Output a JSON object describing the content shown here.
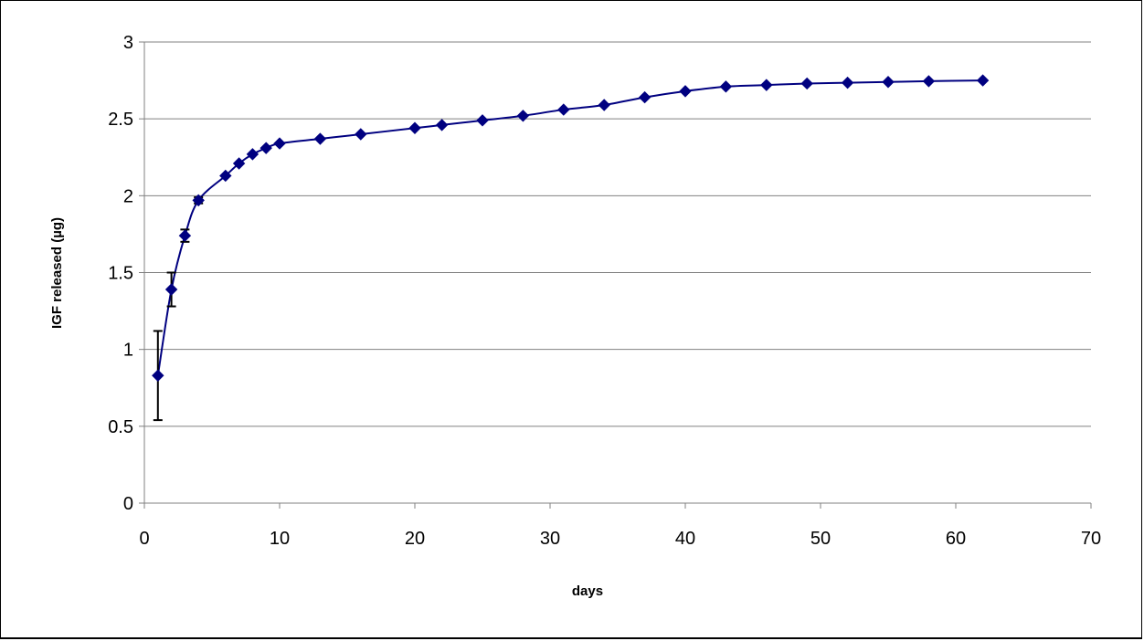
{
  "chart_data": {
    "type": "scatter",
    "title": "",
    "xlabel": "days",
    "ylabel": "IGF released (µg)",
    "xlim": [
      0,
      70
    ],
    "ylim": [
      0,
      3
    ],
    "x_ticks": [
      0,
      10,
      20,
      30,
      40,
      50,
      60,
      70
    ],
    "y_ticks": [
      0,
      0.5,
      1,
      1.5,
      2,
      2.5,
      3
    ],
    "grid": "horizontal",
    "legend": "none",
    "line_style": "smoothed",
    "marker": "diamond",
    "colors": {
      "series": "#000080",
      "error_bars": "#000000",
      "grid": "#808080"
    },
    "series": [
      {
        "x": [
          1,
          2,
          3,
          4,
          6,
          7,
          8,
          9,
          10,
          13,
          16,
          20,
          22,
          25,
          28,
          31,
          34,
          37,
          40,
          43,
          46,
          49,
          52,
          55,
          58,
          62
        ],
        "y": [
          0.83,
          1.39,
          1.74,
          1.97,
          2.13,
          2.21,
          2.27,
          2.31,
          2.34,
          2.37,
          2.4,
          2.44,
          2.46,
          2.49,
          2.52,
          2.56,
          2.59,
          2.64,
          2.68,
          2.71,
          2.72,
          2.73,
          2.735,
          2.74,
          2.745,
          2.75
        ],
        "error": [
          0.29,
          0.11,
          0.04,
          0.02,
          0,
          0,
          0,
          0,
          0,
          0,
          0,
          0,
          0,
          0,
          0,
          0,
          0,
          0,
          0,
          0,
          0,
          0,
          0,
          0,
          0,
          0
        ]
      }
    ]
  }
}
